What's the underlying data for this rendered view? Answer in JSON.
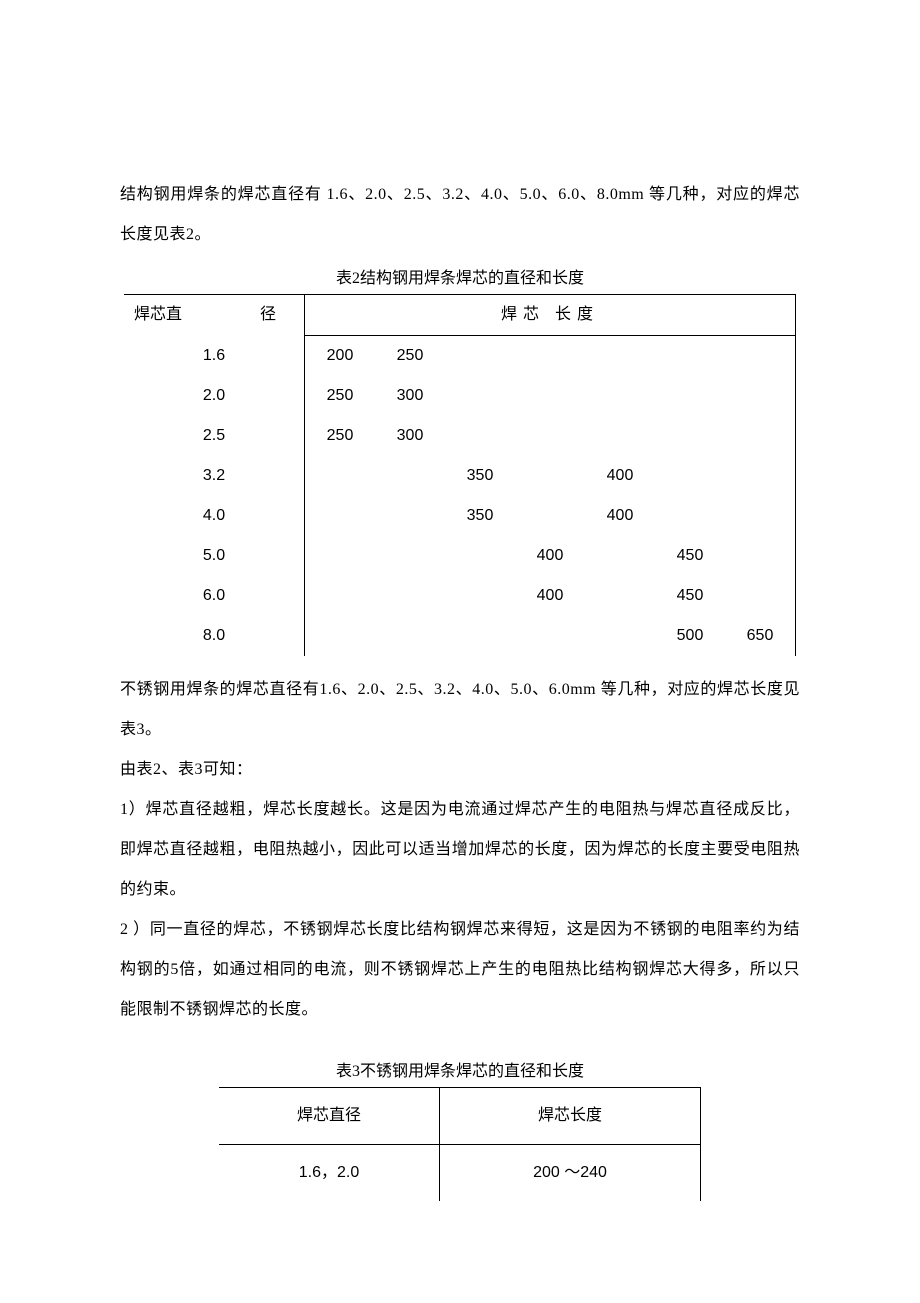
{
  "intro_para": "结构钢用焊条的焊芯直径有 1.6、2.0、2.5、3.2、4.0、5.0、6.0、8.0mm 等几种，对应的焊芯长度见表2。",
  "table2": {
    "caption": "表2结构钢用焊条焊芯的直径和长度",
    "header_left_a": "焊芯直",
    "header_left_b": "径",
    "header_right": "焊芯  长度",
    "rows": [
      {
        "dia": "1.6",
        "c1": "200",
        "c2": "250",
        "c3": "",
        "c4": "",
        "c5": "",
        "c6": "",
        "c7": ""
      },
      {
        "dia": "2.0",
        "c1": "250",
        "c2": "300",
        "c3": "",
        "c4": "",
        "c5": "",
        "c6": "",
        "c7": ""
      },
      {
        "dia": "2.5",
        "c1": "250",
        "c2": "300",
        "c3": "",
        "c4": "",
        "c5": "",
        "c6": "",
        "c7": ""
      },
      {
        "dia": "3.2",
        "c1": "",
        "c2": "",
        "c3": "350",
        "c4": "",
        "c5": "400",
        "c6": "",
        "c7": ""
      },
      {
        "dia": "4.0",
        "c1": "",
        "c2": "",
        "c3": "350",
        "c4": "",
        "c5": "400",
        "c6": "",
        "c7": ""
      },
      {
        "dia": "5.0",
        "c1": "",
        "c2": "",
        "c3": "",
        "c4": "400",
        "c5": "",
        "c6": "450",
        "c7": ""
      },
      {
        "dia": "6.0",
        "c1": "",
        "c2": "",
        "c3": "",
        "c4": "400",
        "c5": "",
        "c6": "450",
        "c7": ""
      },
      {
        "dia": "8.0",
        "c1": "",
        "c2": "",
        "c3": "",
        "c4": "",
        "c5": "",
        "c6": "500",
        "c7": "650"
      }
    ]
  },
  "mid_para_1": "不锈钢用焊条的焊芯直径有1.6、2.0、2.5、3.2、4.0、5.0、6.0mm 等几种，对应的焊芯长度见表3。",
  "mid_para_2": "由表2、表3可知：",
  "mid_para_3": "1）焊芯直径越粗，焊芯长度越长。这是因为电流通过焊芯产生的电阻热与焊芯直径成反比，即焊芯直径越粗，电阻热越小，因此可以适当增加焊芯的长度，因为焊芯的长度主要受电阻热的约束。",
  "mid_para_4": "2 ）同一直径的焊芯，不锈钢焊芯长度比结构钢焊芯来得短，这是因为不锈钢的电阻率约为结构钢的5倍，如通过相同的电流，则不锈钢焊芯上产生的电阻热比结构钢焊芯大得多，所以只能限制不锈钢焊芯的长度。",
  "table3": {
    "caption": "表3不锈钢用焊条焊芯的直径和长度",
    "header_left": "焊芯直径",
    "header_right": "焊芯长度",
    "row1_dia": "1.6，2.0",
    "row1_len": "200 ～240"
  }
}
